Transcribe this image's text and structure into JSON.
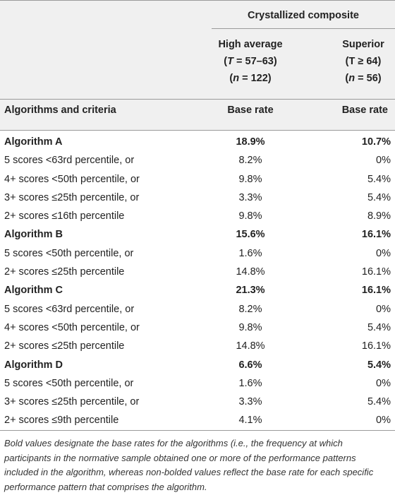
{
  "header": {
    "group": "Crystallized composite",
    "col1": {
      "line1": "High average",
      "line2_pre": "(",
      "line2_var": "T",
      "line2_post": " = 57–63)",
      "line3_pre": "(",
      "line3_var": "n",
      "line3_post": " = 122)"
    },
    "col2": {
      "line1": "Superior",
      "line2": "(T ≥ 64)",
      "line3_pre": "(",
      "line3_var": "n",
      "line3_post": " = 56)"
    },
    "row_label": "Algorithms and criteria",
    "base_rate1": "Base rate",
    "base_rate2": "Base rate"
  },
  "rows": [
    {
      "label": "Algorithm A",
      "v1": "18.9%",
      "v2": "10.7%",
      "bold": true
    },
    {
      "label": "5 scores <63rd percentile, or",
      "v1": "8.2%",
      "v2": "0%",
      "bold": false
    },
    {
      "label": "4+ scores <50th percentile, or",
      "v1": "9.8%",
      "v2": "5.4%",
      "bold": false
    },
    {
      "label": "3+ scores ≤25th percentile, or",
      "v1": "3.3%",
      "v2": "5.4%",
      "bold": false
    },
    {
      "label": "2+ scores ≤16th percentile",
      "v1": "9.8%",
      "v2": "8.9%",
      "bold": false
    },
    {
      "label": "Algorithm B",
      "v1": "15.6%",
      "v2": "16.1%",
      "bold": true
    },
    {
      "label": "5 scores <50th percentile, or",
      "v1": "1.6%",
      "v2": "0%",
      "bold": false
    },
    {
      "label": "2+ scores ≤25th percentile",
      "v1": "14.8%",
      "v2": "16.1%",
      "bold": false
    },
    {
      "label": "Algorithm C",
      "v1": "21.3%",
      "v2": "16.1%",
      "bold": true
    },
    {
      "label": "5 scores <63rd percentile, or",
      "v1": "8.2%",
      "v2": "0%",
      "bold": false
    },
    {
      "label": "4+ scores <50th percentile, or",
      "v1": "9.8%",
      "v2": "5.4%",
      "bold": false
    },
    {
      "label": "2+ scores ≤25th percentile",
      "v1": "14.8%",
      "v2": "16.1%",
      "bold": false
    },
    {
      "label": "Algorithm D",
      "v1": "6.6%",
      "v2": "5.4%",
      "bold": true
    },
    {
      "label": "5 scores <50th percentile, or",
      "v1": "1.6%",
      "v2": "0%",
      "bold": false
    },
    {
      "label": "3+ scores ≤25th percentile, or",
      "v1": "3.3%",
      "v2": "5.4%",
      "bold": false
    },
    {
      "label": "2+ scores ≤9th percentile",
      "v1": "4.1%",
      "v2": "0%",
      "bold": false
    }
  ],
  "footnote": "Bold values designate the base rates for the algorithms (i.e., the frequency at which participants in the normative sample obtained one or more of the performance patterns included in the algorithm, whereas non-bolded values reflect the base rate for each specific performance pattern that comprises the algorithm."
}
